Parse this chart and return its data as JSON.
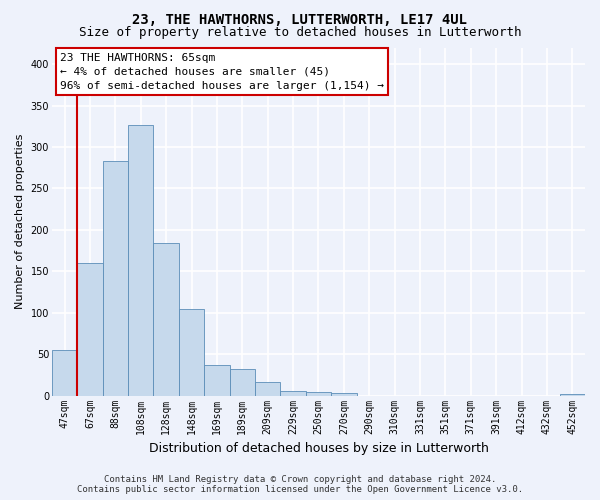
{
  "title": "23, THE HAWTHORNS, LUTTERWORTH, LE17 4UL",
  "subtitle": "Size of property relative to detached houses in Lutterworth",
  "xlabel": "Distribution of detached houses by size in Lutterworth",
  "ylabel": "Number of detached properties",
  "categories": [
    "47sqm",
    "67sqm",
    "88sqm",
    "108sqm",
    "128sqm",
    "148sqm",
    "169sqm",
    "189sqm",
    "209sqm",
    "229sqm",
    "250sqm",
    "270sqm",
    "290sqm",
    "310sqm",
    "331sqm",
    "351sqm",
    "371sqm",
    "391sqm",
    "412sqm",
    "432sqm",
    "452sqm"
  ],
  "values": [
    55,
    160,
    283,
    327,
    184,
    104,
    37,
    32,
    16,
    5,
    4,
    3,
    0,
    0,
    0,
    0,
    0,
    0,
    0,
    0,
    2
  ],
  "bar_color": "#c6d9ec",
  "bar_edge_color": "#5b8db8",
  "annotation_box_facecolor": "#ffffff",
  "annotation_box_edgecolor": "#cc0000",
  "annotation_line_color": "#cc0000",
  "property_line_x": 0.5,
  "annotation_title": "23 THE HAWTHORNS: 65sqm",
  "annotation_line2": "← 4% of detached houses are smaller (45)",
  "annotation_line3": "96% of semi-detached houses are larger (1,154) →",
  "footer_line1": "Contains HM Land Registry data © Crown copyright and database right 2024.",
  "footer_line2": "Contains public sector information licensed under the Open Government Licence v3.0.",
  "ylim": [
    0,
    420
  ],
  "yticks": [
    0,
    50,
    100,
    150,
    200,
    250,
    300,
    350,
    400
  ],
  "bg_color": "#eef2fb",
  "grid_color": "#ffffff",
  "title_fontsize": 10,
  "subtitle_fontsize": 9,
  "ylabel_fontsize": 8,
  "xlabel_fontsize": 9,
  "tick_fontsize": 7,
  "annotation_fontsize": 8,
  "footer_fontsize": 6.5
}
